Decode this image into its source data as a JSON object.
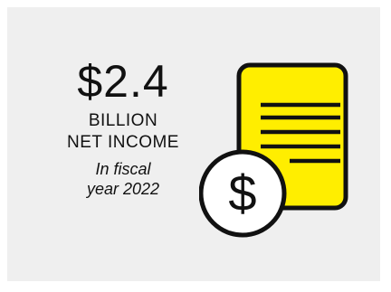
{
  "stat": {
    "amount": "$2.4",
    "unit": "BILLION",
    "label": "NET INCOME",
    "note_line1": "In fiscal",
    "note_line2": "year 2022"
  },
  "icon": {
    "document": "document-icon",
    "coin": "dollar-coin-icon",
    "coin_symbol": "$"
  },
  "colors": {
    "background": "#efefef",
    "document_fill": "#ffee00",
    "outline": "#111111",
    "coin_fill": "#ffffff"
  }
}
